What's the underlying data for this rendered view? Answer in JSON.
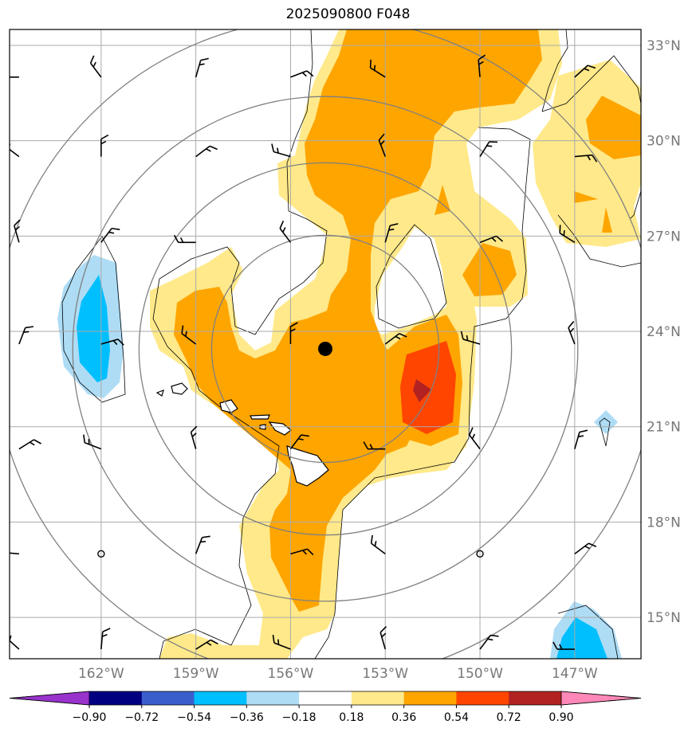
{
  "title": "2025090800 F048",
  "map": {
    "lat_range": [
      13.7,
      33.5
    ],
    "lon_range": [
      -164.9,
      -144.9
    ],
    "lat_ticks": [
      {
        "value": 33,
        "label": "33°N"
      },
      {
        "value": 30,
        "label": "30°N"
      },
      {
        "value": 27,
        "label": "27°N"
      },
      {
        "value": 24,
        "label": "24°N"
      },
      {
        "value": 21,
        "label": "21°N"
      },
      {
        "value": 18,
        "label": "18°N"
      },
      {
        "value": 15,
        "label": "15°N"
      }
    ],
    "lon_ticks": [
      {
        "value": -162,
        "label": "162°W"
      },
      {
        "value": -159,
        "label": "159°W"
      },
      {
        "value": -156,
        "label": "156°W"
      },
      {
        "value": -153,
        "label": "153°W"
      },
      {
        "value": -150,
        "label": "150°W"
      },
      {
        "value": -147,
        "label": "147°W"
      }
    ],
    "center_marker": {
      "lon": -154.9,
      "lat": 23.45
    },
    "range_rings_deg": [
      3.6,
      5.9,
      8.0,
      10.5
    ]
  },
  "colorbar": {
    "labels": [
      "−0.90",
      "−0.72",
      "−0.54",
      "−0.36",
      "−0.18",
      "0.18",
      "0.36",
      "0.54",
      "0.72",
      "0.90"
    ],
    "colors": [
      "#9933cc",
      "#000080",
      "#3a5fcd",
      "#00bfff",
      "#aedcf5",
      "#ffffff",
      "#ffe98a",
      "#ffa500",
      "#ff4500",
      "#b22222",
      "#ff88b8"
    ],
    "extend": "both"
  },
  "colors": {
    "yellow": "#ffe98a",
    "orange": "#ffa500",
    "red": "#ff4500",
    "darkred": "#b22222",
    "lightblue": "#aedcf5",
    "blue": "#00bfff",
    "grid": "#aaaaaa",
    "ring": "#808080"
  }
}
